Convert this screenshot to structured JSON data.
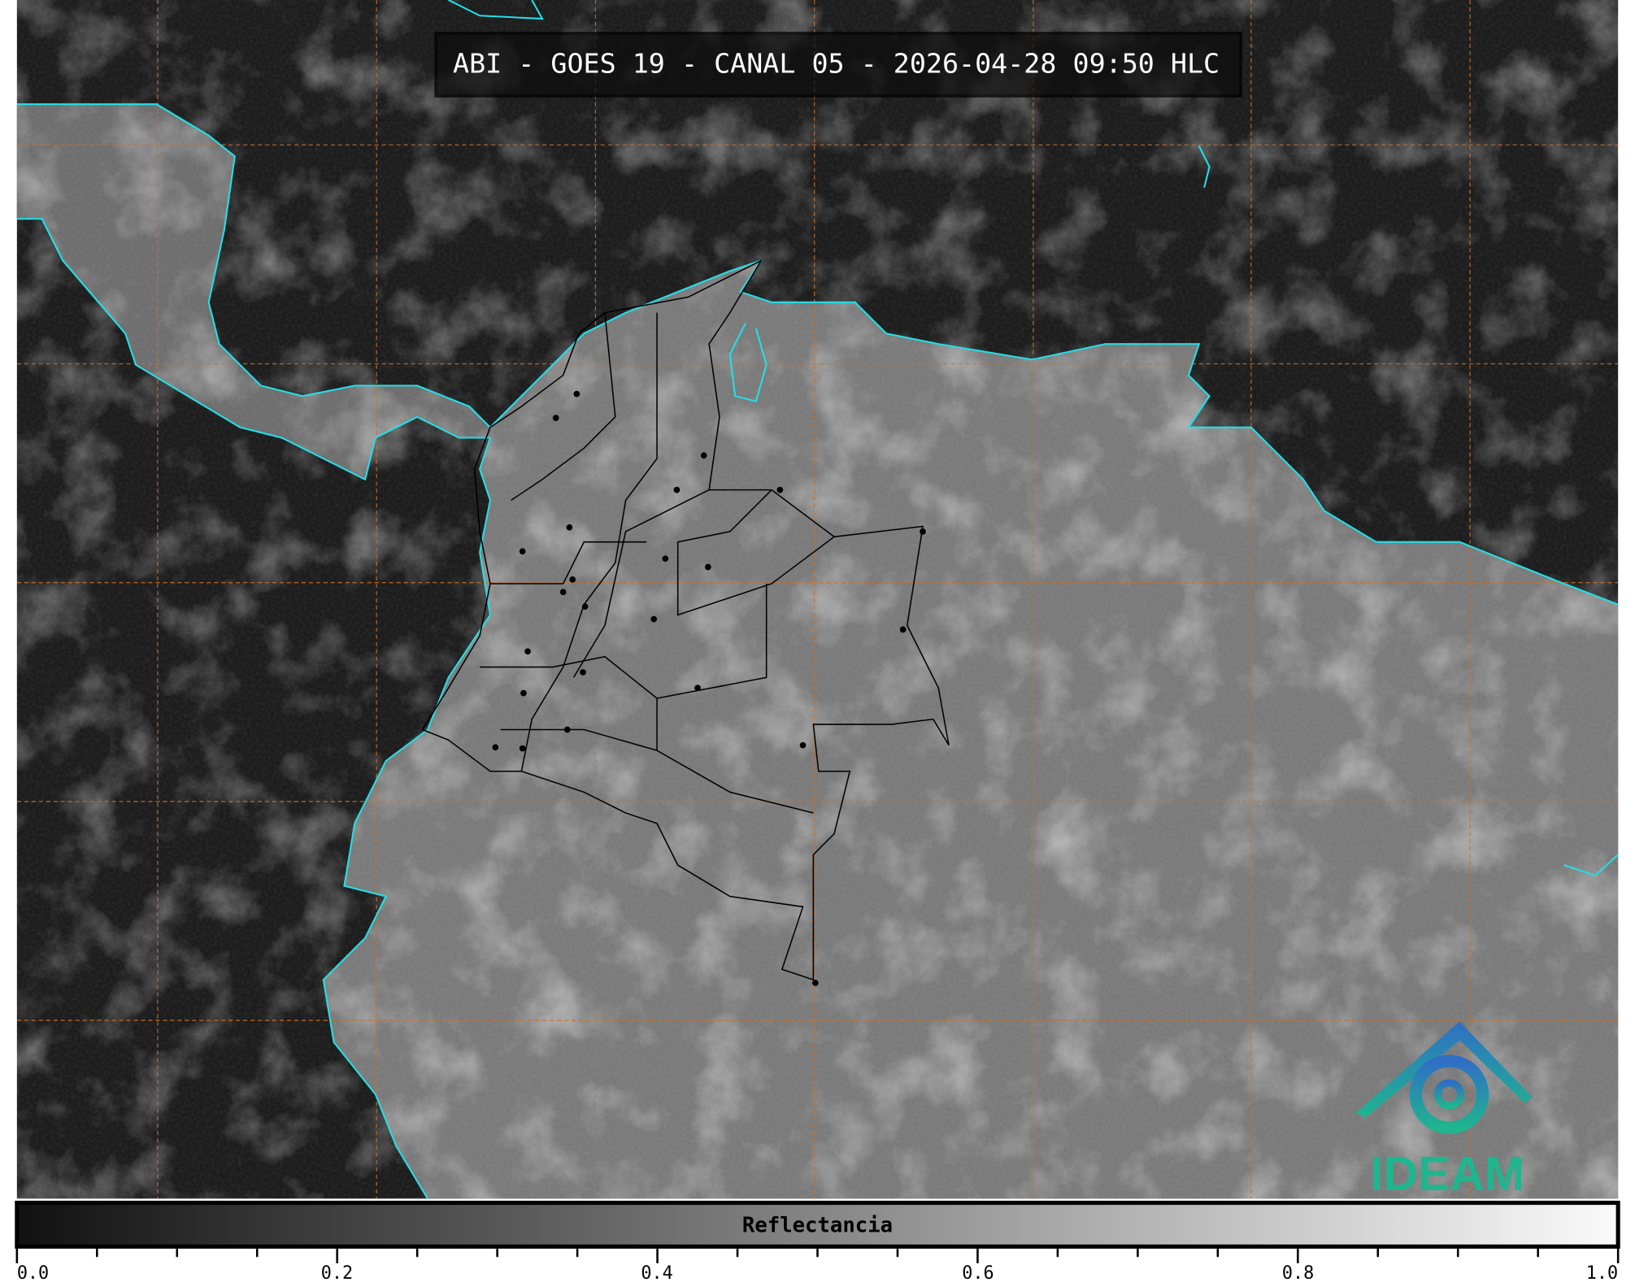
{
  "title": "ABI - GOES 19 - CANAL 05 - 2026-04-28 09:50 HLC",
  "colorbar": {
    "label": "Reflectancia",
    "range": [
      0.0,
      1.0
    ],
    "colormap": "grayscale",
    "ticks": [
      "0.0",
      "0.2",
      "0.4",
      "0.6",
      "0.8",
      "1.0"
    ]
  },
  "logo": {
    "text": "IDEAM",
    "color_top": "#2f6fc4",
    "color_bottom": "#1fb58f"
  },
  "colors": {
    "coastline": "#22e0e8",
    "borders": "#000000",
    "gridlines": "#c8702a"
  }
}
